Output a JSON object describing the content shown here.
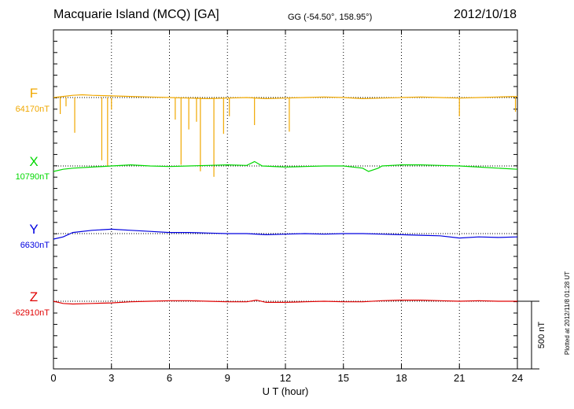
{
  "header": {
    "title": "Macquarie Island (MCQ)  [GA]",
    "coords": "GG (-54.50°, 158.95°)",
    "date": "2012/10/18"
  },
  "footer": {
    "plotted": "Plotted at 2012/11/8 01:28 UT"
  },
  "colors": {
    "F": "#f0a800",
    "X": "#00d800",
    "Y": "#0000e0",
    "Z": "#e00000"
  },
  "chart_data": {
    "type": "line",
    "title": "Macquarie Island (MCQ)  [GA]",
    "xlabel": "U T (hour)",
    "xlim": [
      0,
      24
    ],
    "xticks": [
      0,
      3,
      6,
      9,
      12,
      15,
      18,
      21,
      24
    ],
    "grid": "vertical dotted at 3-hour intervals",
    "scale_bar": {
      "label": "500 nT",
      "nT": 500
    },
    "series": [
      {
        "name": "F",
        "baseline_label": "64170nT",
        "baseline_nT": 64170,
        "points": [
          [
            0,
            64170
          ],
          [
            0.5,
            64180
          ],
          [
            1,
            64190
          ],
          [
            1.5,
            64195
          ],
          [
            2,
            64190
          ],
          [
            3,
            64185
          ],
          [
            4,
            64180
          ],
          [
            5,
            64175
          ],
          [
            6,
            64170
          ],
          [
            7,
            64165
          ],
          [
            8,
            64160
          ],
          [
            9,
            64165
          ],
          [
            10,
            64170
          ],
          [
            11,
            64160
          ],
          [
            12,
            64165
          ],
          [
            13,
            64170
          ],
          [
            14,
            64175
          ],
          [
            15,
            64170
          ],
          [
            16,
            64160
          ],
          [
            17,
            64165
          ],
          [
            18,
            64170
          ],
          [
            19,
            64175
          ],
          [
            20,
            64170
          ],
          [
            21,
            64165
          ],
          [
            22,
            64170
          ],
          [
            23,
            64175
          ],
          [
            24,
            64180
          ]
        ],
        "spikes": [
          [
            0.35,
            64020
          ],
          [
            0.65,
            64090
          ],
          [
            1.1,
            63850
          ],
          [
            2.5,
            63600
          ],
          [
            2.8,
            63550
          ],
          [
            3.0,
            64060
          ],
          [
            6.3,
            63970
          ],
          [
            6.6,
            63560
          ],
          [
            7.0,
            63880
          ],
          [
            7.4,
            63950
          ],
          [
            7.6,
            63500
          ],
          [
            8.3,
            63450
          ],
          [
            8.8,
            63840
          ],
          [
            9.1,
            64000
          ],
          [
            10.4,
            63920
          ],
          [
            12.2,
            63860
          ],
          [
            21.0,
            64000
          ],
          [
            23.9,
            64040
          ]
        ]
      },
      {
        "name": "X",
        "baseline_label": "10790nT",
        "baseline_nT": 10790,
        "points": [
          [
            0,
            10740
          ],
          [
            0.5,
            10760
          ],
          [
            1,
            10770
          ],
          [
            2,
            10780
          ],
          [
            3,
            10790
          ],
          [
            4,
            10800
          ],
          [
            5,
            10790
          ],
          [
            6,
            10785
          ],
          [
            7,
            10790
          ],
          [
            8,
            10795
          ],
          [
            9,
            10800
          ],
          [
            10,
            10795
          ],
          [
            10.4,
            10830
          ],
          [
            10.8,
            10790
          ],
          [
            12,
            10780
          ],
          [
            13,
            10785
          ],
          [
            14,
            10790
          ],
          [
            15,
            10790
          ],
          [
            16,
            10770
          ],
          [
            16.3,
            10740
          ],
          [
            16.8,
            10770
          ],
          [
            17,
            10790
          ],
          [
            18,
            10800
          ],
          [
            19,
            10800
          ],
          [
            20,
            10795
          ],
          [
            21,
            10790
          ],
          [
            22,
            10780
          ],
          [
            23,
            10770
          ],
          [
            24,
            10760
          ]
        ]
      },
      {
        "name": "Y",
        "baseline_label": "6630nT",
        "baseline_nT": 6630,
        "points": [
          [
            0,
            6580
          ],
          [
            0.5,
            6600
          ],
          [
            1,
            6640
          ],
          [
            2,
            6660
          ],
          [
            3,
            6670
          ],
          [
            4,
            6660
          ],
          [
            5,
            6650
          ],
          [
            6,
            6640
          ],
          [
            7,
            6640
          ],
          [
            8,
            6635
          ],
          [
            9,
            6630
          ],
          [
            10,
            6630
          ],
          [
            11,
            6620
          ],
          [
            12,
            6625
          ],
          [
            13,
            6630
          ],
          [
            14,
            6625
          ],
          [
            15,
            6630
          ],
          [
            16,
            6630
          ],
          [
            17,
            6625
          ],
          [
            18,
            6620
          ],
          [
            19,
            6615
          ],
          [
            20,
            6610
          ],
          [
            21,
            6590
          ],
          [
            22,
            6600
          ],
          [
            23,
            6595
          ],
          [
            24,
            6600
          ]
        ]
      },
      {
        "name": "Z",
        "baseline_label": "-62910nT",
        "baseline_nT": -62910,
        "points": [
          [
            0,
            -62910
          ],
          [
            0.5,
            -62930
          ],
          [
            1,
            -62935
          ],
          [
            2,
            -62930
          ],
          [
            3,
            -62925
          ],
          [
            4,
            -62915
          ],
          [
            5,
            -62910
          ],
          [
            6,
            -62905
          ],
          [
            7,
            -62905
          ],
          [
            8,
            -62910
          ],
          [
            9,
            -62915
          ],
          [
            10,
            -62915
          ],
          [
            10.5,
            -62900
          ],
          [
            11,
            -62920
          ],
          [
            12,
            -62920
          ],
          [
            13,
            -62915
          ],
          [
            14,
            -62910
          ],
          [
            15,
            -62915
          ],
          [
            16,
            -62915
          ],
          [
            17,
            -62905
          ],
          [
            18,
            -62900
          ],
          [
            19,
            -62900
          ],
          [
            20,
            -62905
          ],
          [
            21,
            -62910
          ],
          [
            22,
            -62905
          ],
          [
            23,
            -62910
          ],
          [
            24,
            -62910
          ]
        ]
      }
    ]
  }
}
